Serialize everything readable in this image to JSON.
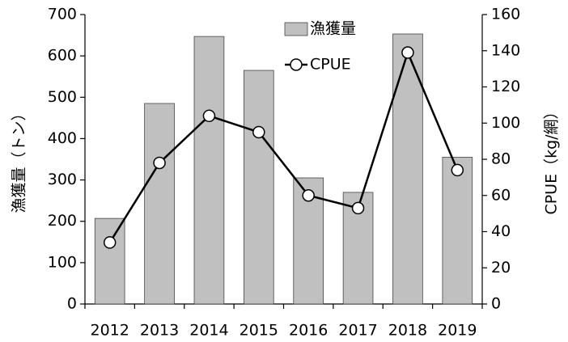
{
  "chart_data": {
    "type": "bar",
    "categories": [
      "2012",
      "2013",
      "2014",
      "2015",
      "2016",
      "2017",
      "2018",
      "2019"
    ],
    "ylabel": "漁獲量（トン）",
    "y2label": "CPUE（kg/網）",
    "series": [
      {
        "name": "漁獲量",
        "type": "bar",
        "color": "#c0c0c0",
        "values": [
          207,
          485,
          647,
          565,
          305,
          270,
          653,
          355
        ]
      },
      {
        "name": "CPUE",
        "type": "line",
        "axis": "y2",
        "color": "#000000",
        "values": [
          34,
          78,
          104,
          95,
          60,
          53,
          139,
          74
        ]
      }
    ],
    "ylim": [
      0,
      700
    ],
    "yticks": [
      0,
      100,
      200,
      300,
      400,
      500,
      600,
      700
    ],
    "y2lim": [
      0,
      160
    ],
    "y2ticks": [
      0,
      20,
      40,
      60,
      80,
      100,
      120,
      140,
      160
    ],
    "grid": false
  }
}
